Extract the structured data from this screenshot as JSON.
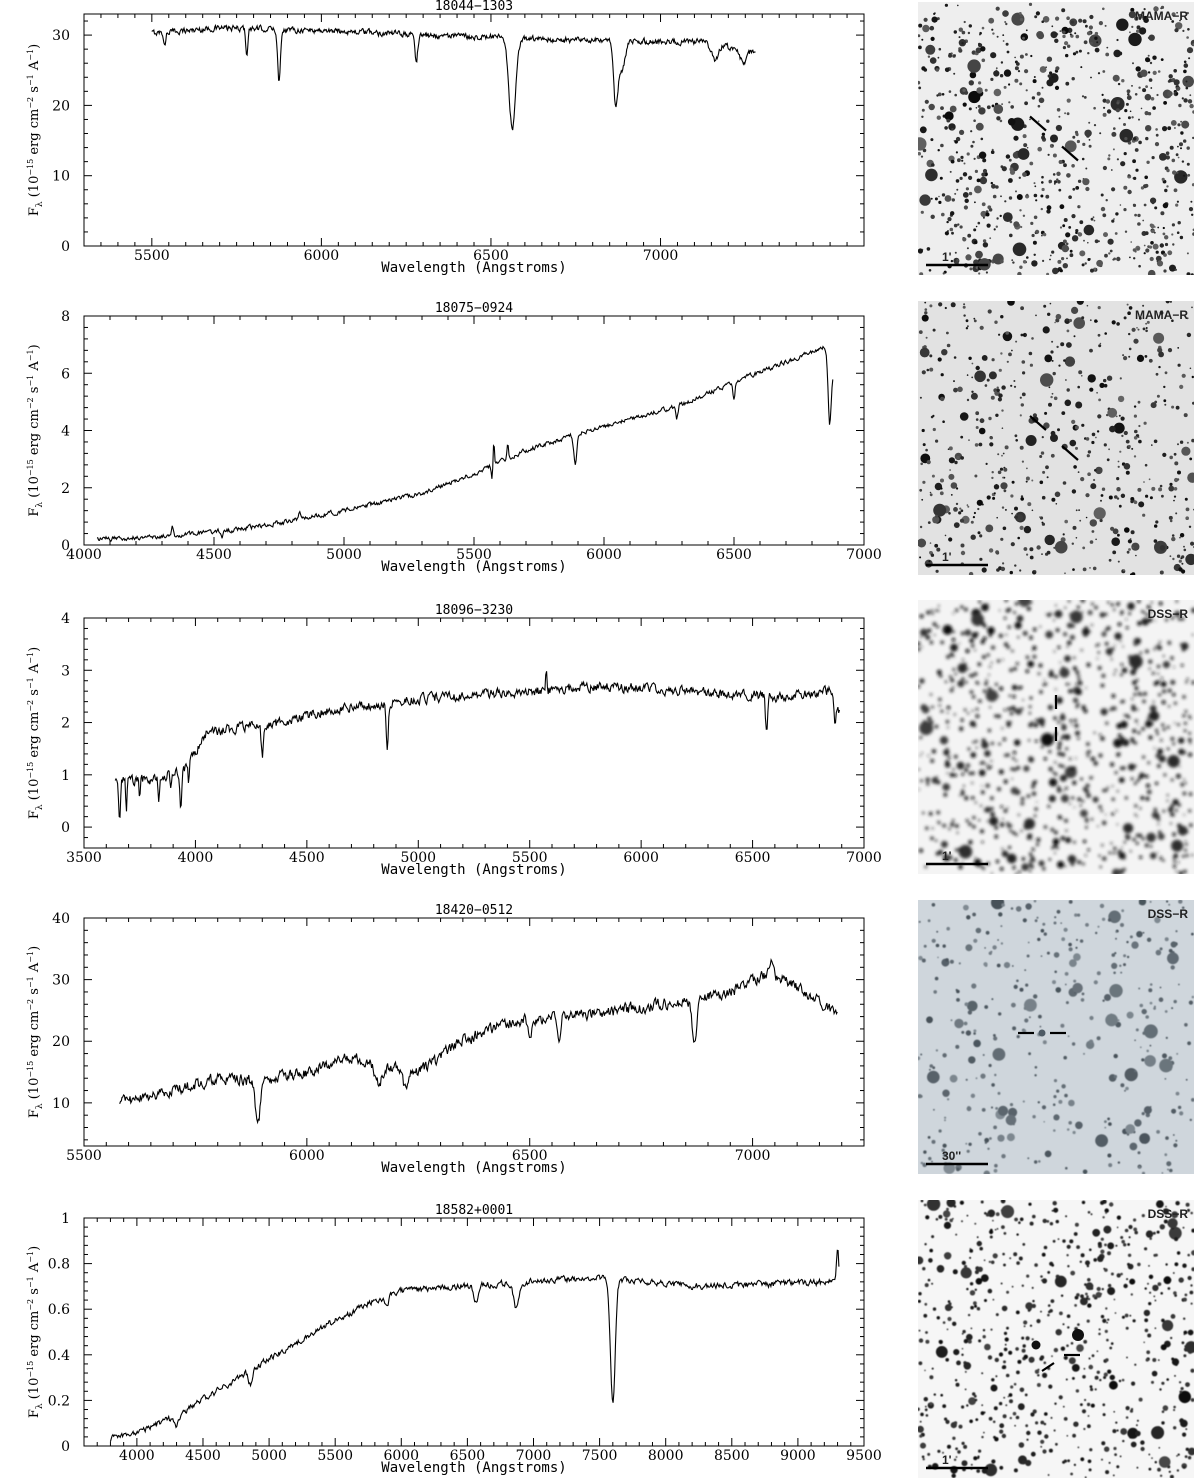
{
  "chart_data": [
    {
      "type": "line",
      "title": "18044−1303",
      "xlabel": "Wavelength (Angstroms)",
      "ylabel": "Fλ (10^-15 erg cm^-2 s^-1 A^-1)",
      "xlim": [
        5300,
        7600
      ],
      "ylim": [
        0,
        33
      ],
      "xticks": [
        5500,
        6000,
        6500,
        7000
      ],
      "yticks": [
        0,
        10,
        20,
        30
      ],
      "x_range": [
        5500,
        7280
      ],
      "noise": 0.35,
      "continuum": [
        [
          5500,
          30.3
        ],
        [
          5700,
          31.0
        ],
        [
          5900,
          30.8
        ],
        [
          6100,
          30.5
        ],
        [
          6300,
          30.0
        ],
        [
          6500,
          29.7
        ],
        [
          6700,
          29.3
        ],
        [
          6900,
          29.1
        ],
        [
          7150,
          29.0
        ],
        [
          7200,
          28.3
        ],
        [
          7280,
          27.8
        ]
      ],
      "lines": [
        [
          5538,
          2.0,
          3
        ],
        [
          5780,
          3.6,
          3
        ],
        [
          5875,
          7.5,
          4
        ],
        [
          6280,
          3.8,
          4
        ],
        [
          6563,
          12.8,
          10
        ],
        [
          6868,
          8.5,
          6
        ],
        [
          6885,
          4.0,
          10
        ],
        [
          7160,
          2.4,
          10
        ],
        [
          7245,
          2.2,
          10
        ]
      ],
      "image": {
        "survey": "MAMA−R",
        "scale": "1'",
        "marker": "diagonal",
        "density": 0.011,
        "bg": "#eeeeee",
        "blur": 0
      }
    },
    {
      "type": "line",
      "title": "18075−0924",
      "xlabel": "Wavelength (Angstroms)",
      "ylabel": "Fλ (10^-15 erg cm^-2 s^-1 A^-1)",
      "xlim": [
        4000,
        7000
      ],
      "ylim": [
        0,
        8
      ],
      "xticks": [
        4000,
        4500,
        5000,
        5500,
        6000,
        6500,
        7000
      ],
      "yticks": [
        0,
        2,
        4,
        6,
        8
      ],
      "x_range": [
        4050,
        6880
      ],
      "noise": 0.07,
      "continuum": [
        [
          4050,
          0.2
        ],
        [
          4300,
          0.3
        ],
        [
          4600,
          0.55
        ],
        [
          4800,
          0.85
        ],
        [
          5000,
          1.2
        ],
        [
          5300,
          1.8
        ],
        [
          5500,
          2.5
        ],
        [
          5700,
          3.3
        ],
        [
          5900,
          3.9
        ],
        [
          6100,
          4.4
        ],
        [
          6300,
          4.9
        ],
        [
          6500,
          5.7
        ],
        [
          6700,
          6.4
        ],
        [
          6850,
          6.9
        ],
        [
          6880,
          6.1
        ]
      ],
      "lines": [
        [
          4340,
          -0.4,
          4
        ],
        [
          4530,
          0.25,
          3
        ],
        [
          4830,
          -0.3,
          4
        ],
        [
          5570,
          0.6,
          3
        ],
        [
          5576,
          -0.9,
          3
        ],
        [
          5630,
          -0.5,
          3
        ],
        [
          5890,
          1.0,
          6
        ],
        [
          6280,
          0.4,
          4
        ],
        [
          6500,
          0.6,
          4
        ],
        [
          6868,
          2.2,
          6
        ]
      ],
      "image": {
        "survey": "MAMA−R",
        "scale": "1'",
        "marker": "diagonal",
        "density": 0.008,
        "bg": "#e2e2e2",
        "blur": 0
      }
    },
    {
      "type": "line",
      "title": "18096−3230",
      "xlabel": "Wavelength (Angstroms)",
      "ylabel": "Fλ (10^-15 erg cm^-2 s^-1 A^-1)",
      "xlim": [
        3500,
        7000
      ],
      "ylim": [
        -0.4,
        4
      ],
      "xticks": [
        3500,
        4000,
        4500,
        5000,
        5500,
        6000,
        6500,
        7000
      ],
      "yticks": [
        0,
        1,
        2,
        3,
        4
      ],
      "x_range": [
        3640,
        6890
      ],
      "noise": 0.08,
      "continuum": [
        [
          3640,
          0.9
        ],
        [
          3800,
          0.9
        ],
        [
          3950,
          1.1
        ],
        [
          4050,
          1.8
        ],
        [
          4200,
          1.9
        ],
        [
          4400,
          2.0
        ],
        [
          4600,
          2.25
        ],
        [
          5000,
          2.45
        ],
        [
          5500,
          2.6
        ],
        [
          5800,
          2.7
        ],
        [
          6200,
          2.6
        ],
        [
          6600,
          2.5
        ],
        [
          6860,
          2.6
        ],
        [
          6890,
          2.2
        ]
      ],
      "lines": [
        [
          3660,
          0.8,
          4
        ],
        [
          3690,
          0.7,
          3
        ],
        [
          3750,
          0.4,
          3
        ],
        [
          3835,
          0.5,
          3
        ],
        [
          3890,
          0.35,
          3
        ],
        [
          3934,
          0.7,
          4
        ],
        [
          3970,
          0.5,
          3
        ],
        [
          4300,
          0.6,
          5
        ],
        [
          4861,
          0.9,
          5
        ],
        [
          5575,
          -0.4,
          3
        ],
        [
          6563,
          0.7,
          5
        ],
        [
          6870,
          0.6,
          5
        ]
      ],
      "image": {
        "survey": "DSS−R",
        "scale": "1'",
        "marker": "vertical",
        "density": 0.012,
        "bg": "#f4f4f4",
        "blur": 1.6
      }
    },
    {
      "type": "line",
      "title": "18420−0512",
      "xlabel": "Wavelength (Angstroms)",
      "ylabel": "Fλ (10^-15 erg cm^-2 s^-1 A^-1)",
      "xlim": [
        5500,
        7250
      ],
      "ylim": [
        3,
        40
      ],
      "xticks": [
        5500,
        6000,
        6500,
        7000
      ],
      "yticks": [
        10,
        20,
        30,
        40
      ],
      "x_range": [
        5580,
        7190
      ],
      "noise": 0.8,
      "continuum": [
        [
          5580,
          10.0
        ],
        [
          5700,
          12.0
        ],
        [
          5800,
          14.0
        ],
        [
          5880,
          13.5
        ],
        [
          6000,
          15.0
        ],
        [
          6100,
          17.5
        ],
        [
          6170,
          16.0
        ],
        [
          6250,
          15.0
        ],
        [
          6350,
          20.0
        ],
        [
          6450,
          23.0
        ],
        [
          6550,
          24.0
        ],
        [
          6700,
          25.0
        ],
        [
          6850,
          26.5
        ],
        [
          6950,
          28.0
        ],
        [
          7040,
          31.0
        ],
        [
          7100,
          29.0
        ],
        [
          7190,
          24.5
        ]
      ],
      "lines": [
        [
          5890,
          7.5,
          5
        ],
        [
          6160,
          3.0,
          8
        ],
        [
          6220,
          3.0,
          6
        ],
        [
          6500,
          3.0,
          4
        ],
        [
          6565,
          3.5,
          4
        ],
        [
          6870,
          7.0,
          5
        ],
        [
          7042,
          -3.0,
          4
        ]
      ],
      "image": {
        "survey": "DSS−R",
        "scale": "30''",
        "marker": "horizontal",
        "density": 0.005,
        "bg": "#cfd6dc",
        "blur": 0.6
      }
    },
    {
      "type": "line",
      "title": "18582+0001",
      "xlabel": "Wavelength (Angstroms)",
      "ylabel": "Fλ (10^-15 erg cm^-2 s^-1 A^-1)",
      "xlim": [
        3600,
        9500
      ],
      "ylim": [
        0,
        1
      ],
      "xticks": [
        4000,
        4500,
        5000,
        5500,
        6000,
        6500,
        7000,
        7500,
        8000,
        8500,
        9000,
        9500
      ],
      "yticks": [
        0,
        0.2,
        0.4,
        0.6,
        0.8,
        1
      ],
      "x_range": [
        3800,
        9310
      ],
      "noise": 0.012,
      "continuum": [
        [
          3800,
          0.03
        ],
        [
          4000,
          0.06
        ],
        [
          4300,
          0.13
        ],
        [
          4600,
          0.24
        ],
        [
          5000,
          0.38
        ],
        [
          5400,
          0.52
        ],
        [
          5800,
          0.64
        ],
        [
          6000,
          0.68
        ],
        [
          6400,
          0.7
        ],
        [
          7000,
          0.72
        ],
        [
          7500,
          0.74
        ],
        [
          7800,
          0.72
        ],
        [
          8200,
          0.7
        ],
        [
          8800,
          0.71
        ],
        [
          9300,
          0.72
        ]
      ],
      "lines": [
        [
          4300,
          0.05,
          15
        ],
        [
          4861,
          0.07,
          15
        ],
        [
          5890,
          0.05,
          15
        ],
        [
          6563,
          0.08,
          15
        ],
        [
          6870,
          0.12,
          20
        ],
        [
          7600,
          0.55,
          18
        ],
        [
          9300,
          -0.15,
          8
        ]
      ],
      "image": {
        "survey": "DSS−R",
        "scale": "1'",
        "marker": "corner",
        "density": 0.009,
        "bg": "#f6f6f6",
        "blur": 0.5
      }
    }
  ]
}
